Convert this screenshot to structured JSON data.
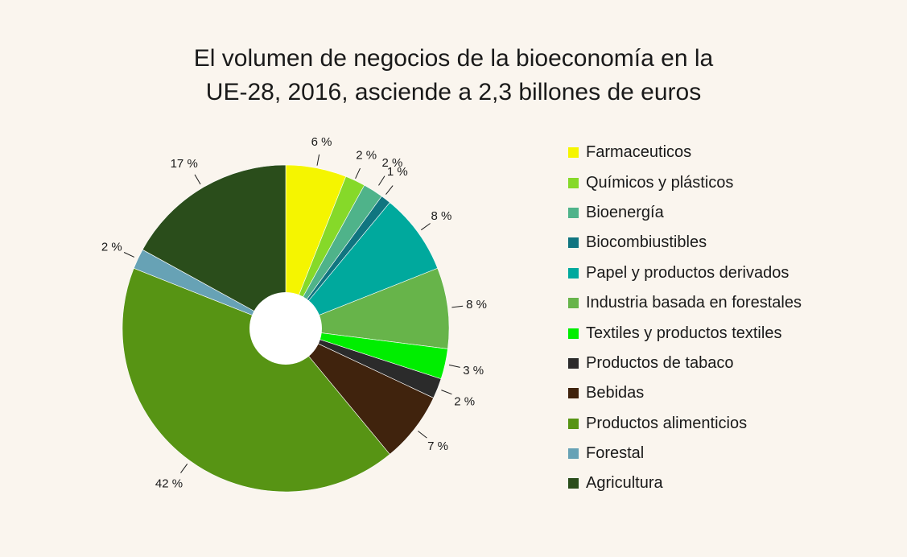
{
  "title_line1": "El volumen de negocios de la bioeconomía en la",
  "title_line2": "UE-28, 2016, asciende a 2,3 billones de euros",
  "chart_data": {
    "type": "pie",
    "title": "El volumen de negocios de la bioeconomía en la UE-28, 2016, asciende a 2,3 billones de euros",
    "legend_position": "right",
    "slices": [
      {
        "label": "Farmaceuticos",
        "value": 6,
        "value_label": "6 %",
        "color": "#f5f500"
      },
      {
        "label": "Químicos y plásticos",
        "value": 2,
        "value_label": "2 %",
        "color": "#86d929"
      },
      {
        "label": "Bioenergía",
        "value": 2,
        "value_label": "2 %",
        "color": "#4fb38a"
      },
      {
        "label": "Biocombiustibles",
        "value": 1,
        "value_label": "1 %",
        "color": "#107580"
      },
      {
        "label": "Papel y productos derivados",
        "value": 8,
        "value_label": "8 %",
        "color": "#00a99d"
      },
      {
        "label": "Industria basada en forestales",
        "value": 8,
        "value_label": "8 %",
        "color": "#67b44a"
      },
      {
        "label": "Textiles y productos textiles",
        "value": 3,
        "value_label": "3 %",
        "color": "#00ee00"
      },
      {
        "label": "Productos de tabaco",
        "value": 2,
        "value_label": "2 %",
        "color": "#2b2b2b"
      },
      {
        "label": "Bebidas",
        "value": 7,
        "value_label": "7 %",
        "color": "#40230d"
      },
      {
        "label": "Productos alimenticios",
        "value": 42,
        "value_label": "42 %",
        "color": "#579414"
      },
      {
        "label": "Forestal",
        "value": 2,
        "value_label": "2 %",
        "color": "#67a2b5"
      },
      {
        "label": "Agricultura",
        "value": 17,
        "value_label": "17 %",
        "color": "#2a4d1b"
      }
    ]
  }
}
